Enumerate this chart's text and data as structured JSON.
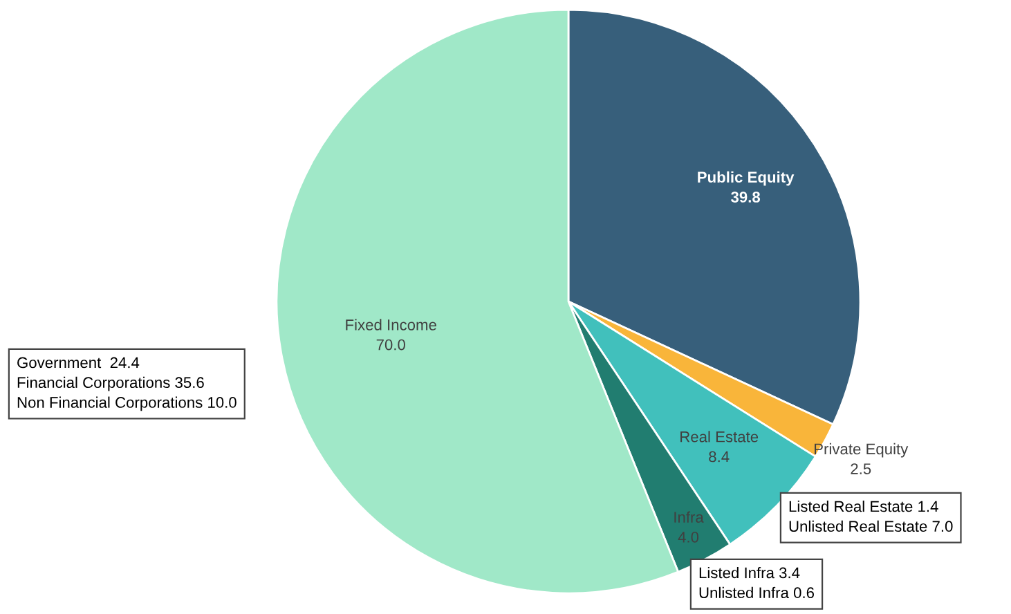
{
  "chart_data": {
    "type": "pie",
    "categories": [
      "Public Equity",
      "Private Equity",
      "Real Estate",
      "Infra",
      "Fixed Income"
    ],
    "values": [
      39.8,
      2.5,
      8.4,
      4.0,
      70.0
    ],
    "colors": [
      "#375f7b",
      "#f9b53a",
      "#41c0bc",
      "#217d70",
      "#a0e8c8"
    ],
    "value_labels": [
      "39.8",
      "2.5",
      "8.4",
      "4.0",
      "70.0"
    ],
    "legend": false,
    "annotations": [
      "Government  24.4\nFinancial Corporations 35.6\nNon Financial Corporations 10.0",
      "Listed Real Estate 1.4\nUnlisted Real Estate 7.0",
      "Listed Infra 3.4\nUnlisted Infra 0.6"
    ]
  }
}
